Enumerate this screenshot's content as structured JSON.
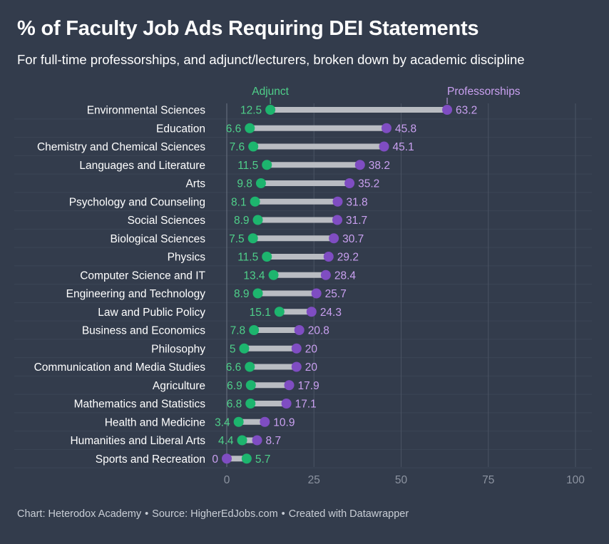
{
  "title": "% of Faculty Job Ads Requiring DEI Statements",
  "subtitle": "For full-time professorships, and adjunct/lecturers, broken down by academic discipline",
  "footer": {
    "chart_credit": "Chart: Heterodox Academy",
    "source": "Source: HigherEdJobs.com",
    "tool": "Created with Datawrapper",
    "separator": "•"
  },
  "colors": {
    "background": "#333c4c",
    "adjunct": "#1db56e",
    "professorships": "#7f4dc2",
    "adjunct_label": "#4fd08a",
    "professorships_label": "#c9a0f0",
    "connector": "#b9bcc2",
    "grid": "#4a5363",
    "axis_text": "#8d94a1"
  },
  "chart_data": {
    "type": "dot",
    "xlim": [
      0,
      100
    ],
    "xticks": [
      0,
      25,
      50,
      75,
      100
    ],
    "grid": "vertical",
    "legend": "inline-top",
    "categories": [
      "Environmental Sciences",
      "Education",
      "Chemistry and Chemical Sciences",
      "Languages and Literature",
      "Arts",
      "Psychology and Counseling",
      "Social Sciences",
      "Biological Sciences",
      "Physics",
      "Computer Science and IT",
      "Engineering and Technology",
      "Law and Public Policy",
      "Business and Economics",
      "Philosophy",
      "Communication and Media Studies",
      "Agriculture",
      "Mathematics and Statistics",
      "Health and Medicine",
      "Humanities and Liberal Arts",
      "Sports and Recreation"
    ],
    "series": [
      {
        "name": "Adjunct",
        "values": [
          12.5,
          6.6,
          7.6,
          11.5,
          9.8,
          8.1,
          8.9,
          7.5,
          11.5,
          13.4,
          8.9,
          15.1,
          7.8,
          5,
          6.6,
          6.9,
          6.8,
          3.4,
          4.4,
          5.7
        ]
      },
      {
        "name": "Professorships",
        "values": [
          63.2,
          45.8,
          45.1,
          38.2,
          35.2,
          31.8,
          31.7,
          30.7,
          29.2,
          28.4,
          25.7,
          24.3,
          20.8,
          20,
          20,
          17.9,
          17.1,
          10.9,
          8.7,
          0
        ]
      }
    ]
  }
}
